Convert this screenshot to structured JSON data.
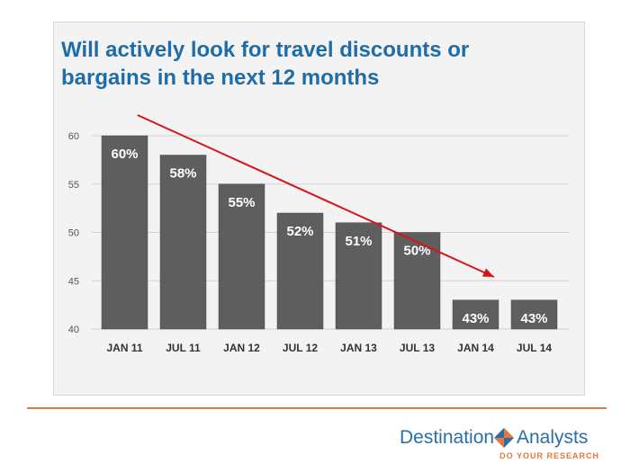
{
  "chart_data": {
    "type": "bar",
    "title_lines": [
      "Will actively look for travel discounts or",
      "bargains in the next 12 months"
    ],
    "categories": [
      "JAN 11",
      "JUL 11",
      "JAN 12",
      "JUL 12",
      "JAN 13",
      "JUL 13",
      "JAN 14",
      "JUL 14"
    ],
    "values": [
      60,
      58,
      55,
      52,
      51,
      50,
      43,
      43
    ],
    "data_labels": [
      "60%",
      "58%",
      "55%",
      "52%",
      "51%",
      "50%",
      "43%",
      "43%"
    ],
    "ylim": [
      40,
      60
    ],
    "yticks": [
      40,
      45,
      50,
      55,
      60
    ],
    "grid": true,
    "xlabel": "",
    "ylabel": "",
    "bar_color": "#5e5e5e",
    "trend_line": {
      "color": "#d8141b",
      "from_category": "JAN 11",
      "to_category": "JAN 14",
      "arrow": true
    }
  },
  "logo": {
    "left_word": "Destination",
    "right_word": "Analysts",
    "tagline": "DO YOUR RESEARCH",
    "primary_color": "#2a6fa8",
    "accent_color": "#e8763a"
  }
}
